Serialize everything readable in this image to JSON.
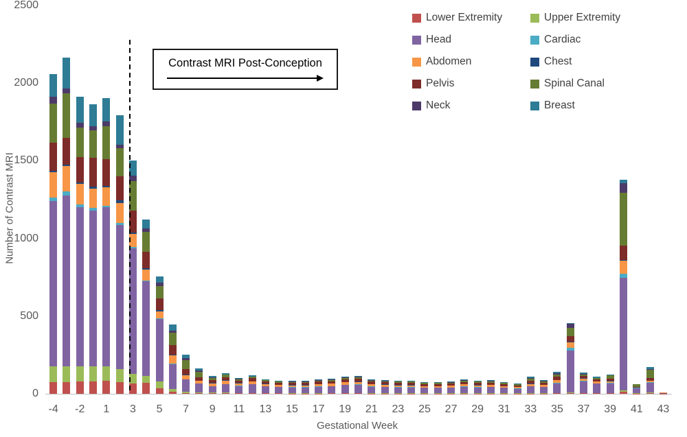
{
  "chart_data": {
    "type": "bar",
    "stacked": true,
    "title": "",
    "xlabel": "Gestational Week",
    "ylabel": "Number of Contrast MRI",
    "ylim": [
      0,
      2500
    ],
    "yticks": [
      0,
      500,
      1000,
      1500,
      2000,
      2500
    ],
    "grid": false,
    "legend_position": "top-right",
    "annotation": {
      "label": "Contrast MRI Post-Conception",
      "arrow": "right"
    },
    "dashed_line_between": [
      "2",
      "3"
    ],
    "categories": [
      "-4",
      "-3",
      "-2",
      "-1",
      "1",
      "2",
      "3",
      "4",
      "5",
      "6",
      "7",
      "8",
      "9",
      "10",
      "11",
      "12",
      "13",
      "14",
      "15",
      "16",
      "17",
      "18",
      "19",
      "20",
      "21",
      "22",
      "23",
      "24",
      "25",
      "26",
      "27",
      "28",
      "29",
      "30",
      "31",
      "32",
      "33",
      "34",
      "35",
      "36",
      "37",
      "38",
      "39",
      "40",
      "41",
      "42",
      "43"
    ],
    "x_tick_labels": [
      "-4",
      "-2",
      "1",
      "3",
      "5",
      "7",
      "9",
      "11",
      "13",
      "15",
      "17",
      "19",
      "21",
      "23",
      "25",
      "27",
      "29",
      "31",
      "33",
      "35",
      "37",
      "39",
      "41",
      "43"
    ],
    "series": [
      {
        "name": "Lower Extremity",
        "color": "#C0504D",
        "values": [
          75,
          75,
          80,
          80,
          85,
          75,
          65,
          70,
          35,
          12,
          6,
          5,
          4,
          4,
          3,
          3,
          3,
          3,
          2,
          2,
          2,
          3,
          3,
          3,
          2,
          2,
          2,
          2,
          2,
          2,
          2,
          2,
          2,
          2,
          2,
          2,
          2,
          2,
          3,
          5,
          3,
          3,
          3,
          15,
          2,
          5,
          1
        ]
      },
      {
        "name": "Upper Extremity",
        "color": "#9BBB59",
        "values": [
          100,
          100,
          95,
          95,
          90,
          85,
          65,
          45,
          45,
          20,
          8,
          5,
          3,
          3,
          2,
          2,
          2,
          2,
          2,
          2,
          2,
          2,
          3,
          3,
          2,
          2,
          2,
          2,
          2,
          2,
          2,
          2,
          2,
          2,
          2,
          1,
          2,
          2,
          2,
          3,
          2,
          2,
          2,
          5,
          2,
          2,
          1
        ]
      },
      {
        "name": "Head",
        "color": "#8064A2",
        "values": [
          1065,
          1100,
          1025,
          1005,
          1025,
          925,
          805,
          608,
          400,
          160,
          78,
          55,
          40,
          55,
          45,
          55,
          42,
          38,
          38,
          38,
          42,
          44,
          50,
          52,
          42,
          40,
          38,
          38,
          34,
          34,
          36,
          42,
          38,
          40,
          34,
          30,
          45,
          40,
          62,
          272,
          75,
          60,
          62,
          725,
          33,
          65,
          4
        ]
      },
      {
        "name": "Cardiac",
        "color": "#4BACC6",
        "values": [
          25,
          30,
          20,
          15,
          12,
          15,
          10,
          5,
          5,
          4,
          3,
          3,
          2,
          2,
          2,
          2,
          2,
          2,
          1,
          1,
          2,
          2,
          2,
          2,
          2,
          2,
          1,
          1,
          1,
          1,
          1,
          2,
          1,
          1,
          1,
          1,
          2,
          1,
          2,
          14,
          3,
          2,
          2,
          30,
          1,
          2,
          0
        ]
      },
      {
        "name": "Abdomen",
        "color": "#F79646",
        "values": [
          160,
          160,
          130,
          125,
          118,
          130,
          85,
          70,
          45,
          50,
          25,
          15,
          18,
          20,
          15,
          18,
          14,
          12,
          12,
          12,
          14,
          14,
          16,
          17,
          14,
          13,
          12,
          12,
          11,
          11,
          11,
          13,
          12,
          12,
          10,
          9,
          12,
          12,
          18,
          37,
          15,
          12,
          12,
          80,
          3,
          10,
          1
        ]
      },
      {
        "name": "Chest",
        "color": "#1F497D",
        "values": [
          12,
          12,
          12,
          12,
          10,
          15,
          8,
          10,
          8,
          6,
          4,
          3,
          3,
          3,
          2,
          2,
          2,
          2,
          2,
          2,
          2,
          2,
          2,
          2,
          2,
          2,
          2,
          2,
          1,
          1,
          2,
          2,
          2,
          2,
          1,
          1,
          2,
          2,
          3,
          3,
          3,
          2,
          3,
          5,
          1,
          2,
          0
        ]
      },
      {
        "name": "Pelvis",
        "color": "#7E2C2A",
        "values": [
          180,
          170,
          163,
          188,
          170,
          155,
          140,
          105,
          75,
          62,
          36,
          20,
          19,
          20,
          15,
          18,
          14,
          13,
          12,
          12,
          14,
          14,
          16,
          17,
          14,
          13,
          13,
          13,
          11,
          11,
          12,
          14,
          13,
          13,
          12,
          11,
          18,
          13,
          20,
          38,
          12,
          10,
          14,
          95,
          3,
          15,
          1
        ]
      },
      {
        "name": "Spinal Canal",
        "color": "#677C33",
        "values": [
          250,
          290,
          190,
          175,
          215,
          180,
          190,
          128,
          80,
          80,
          56,
          35,
          15,
          15,
          10,
          10,
          8,
          7,
          8,
          8,
          8,
          9,
          10,
          10,
          8,
          8,
          8,
          8,
          7,
          7,
          7,
          9,
          8,
          9,
          7,
          6,
          16,
          9,
          16,
          52,
          12,
          10,
          20,
          340,
          15,
          55,
          2
        ]
      },
      {
        "name": "Neck",
        "color": "#4C3A69",
        "values": [
          45,
          30,
          30,
          30,
          30,
          25,
          35,
          22,
          22,
          14,
          13,
          8,
          3,
          3,
          3,
          3,
          2,
          2,
          2,
          2,
          2,
          2,
          3,
          3,
          2,
          2,
          2,
          2,
          2,
          2,
          2,
          2,
          2,
          2,
          2,
          1,
          3,
          2,
          6,
          29,
          4,
          3,
          3,
          62,
          1,
          5,
          0
        ]
      },
      {
        "name": "Breast",
        "color": "#2E7C95",
        "values": [
          145,
          200,
          170,
          140,
          150,
          190,
          100,
          58,
          39,
          38,
          22,
          14,
          8,
          7,
          6,
          7,
          5,
          5,
          5,
          5,
          5,
          5,
          5,
          6,
          5,
          4,
          4,
          4,
          4,
          4,
          4,
          5,
          4,
          5,
          4,
          4,
          10,
          5,
          8,
          2,
          8,
          6,
          5,
          20,
          1,
          10,
          0
        ]
      }
    ]
  }
}
